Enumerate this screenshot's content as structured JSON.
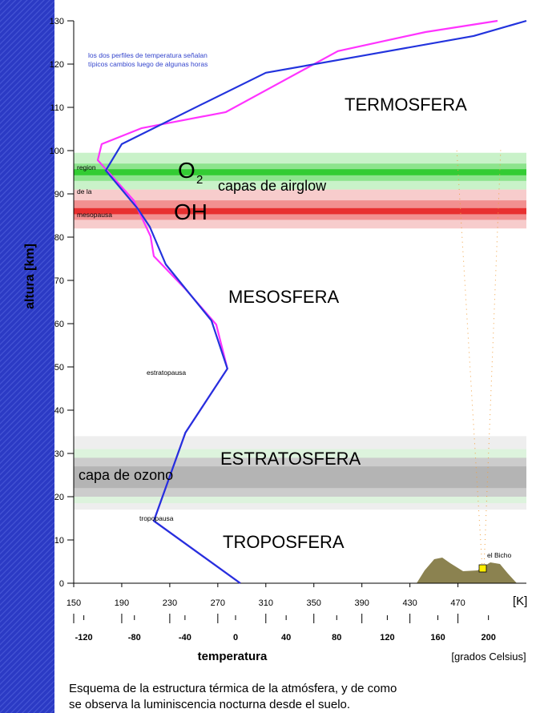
{
  "chart_data": {
    "type": "line",
    "ylabel": "altura [km]",
    "xlabel": "temperatura",
    "xunit": "[K]",
    "x2label": "[grados Celsius]",
    "xlim": [
      150,
      527
    ],
    "xticks": [
      150,
      190,
      230,
      270,
      310,
      350,
      390,
      430,
      470
    ],
    "x2lim": [
      -128,
      230
    ],
    "x2ticks": [
      -120,
      -80,
      -40,
      0,
      40,
      80,
      120,
      160,
      200
    ],
    "ylim": [
      0,
      130
    ],
    "yticks": [
      0,
      10,
      20,
      30,
      40,
      50,
      60,
      70,
      80,
      90,
      100,
      110,
      120,
      130
    ],
    "series": [
      {
        "color": "#ff33ff",
        "x": [
          288.7,
          216.7,
          243,
          278,
          268.7,
          243,
          216.7,
          214,
          200,
          170,
          173.3,
          206.7,
          276.7,
          370,
          443,
          503
        ],
        "values": [
          0,
          14.4,
          34.8,
          49.6,
          59.8,
          68,
          75.6,
          80.2,
          88.5,
          97.8,
          101.5,
          105.2,
          108.9,
          123,
          127.4,
          130
        ]
      },
      {
        "color": "#2233dd",
        "x": [
          288.7,
          216.7,
          243,
          278,
          264.7,
          226.7,
          213.3,
          203,
          176.7,
          190,
          256.7,
          310,
          390,
          483,
          527
        ],
        "values": [
          0,
          14.4,
          34.8,
          49.6,
          60.7,
          73.7,
          82.4,
          86.7,
          95.4,
          101.5,
          110.7,
          118,
          121.9,
          126.5,
          130
        ]
      }
    ],
    "bands": [
      {
        "range": [
          91,
          99.5
        ],
        "color": "#c9f2c9"
      },
      {
        "range": [
          93,
          97
        ],
        "color": "#8de48d"
      },
      {
        "range": [
          94.3,
          95.7
        ],
        "color": "#33cc33"
      },
      {
        "range": [
          82,
          91
        ],
        "color": "#f7cccc"
      },
      {
        "range": [
          84,
          88.5
        ],
        "color": "#f29090"
      },
      {
        "range": [
          85.3,
          86.7
        ],
        "color": "#e83030"
      },
      {
        "range": [
          17,
          34
        ],
        "color": "#eeeeee"
      },
      {
        "range": [
          18.5,
          31
        ],
        "color": "#ddf3dd"
      },
      {
        "range": [
          20,
          29
        ],
        "color": "#cccccc"
      },
      {
        "range": [
          22,
          27
        ],
        "color": "#b4b4b4"
      }
    ],
    "annotations": {
      "note_line1": "los dos perfiles de temperatura señalan",
      "note_line2": "típicos cambios luego de algunas horas",
      "termosfera": "TERMOSFERA",
      "mesosfera": "MESOSFERA",
      "estratosfera": "ESTRATOSFERA",
      "troposfera": "TROPOSFERA",
      "o2_main": "O",
      "o2_sub": "2",
      "oh": "OH",
      "airglow": "capas de airglow",
      "region": "region",
      "de_la": "de la",
      "mesopausa": "mesopausa",
      "estratopausa": "estratopausa",
      "tropopausa": "tropopausa",
      "ozono": "capa de ozono",
      "bicho": "el Bicho"
    },
    "caption": [
      "Esquema de la estructura térmica de la atmósfera, y de como",
      "se observa la luminiscencia nocturna  desde el suelo."
    ]
  }
}
